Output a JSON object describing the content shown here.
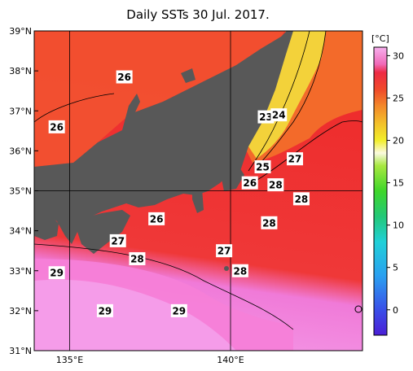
{
  "title": "Daily SSTs 30 Jul. 2017.",
  "units": "[°C]",
  "map": {
    "lon_range": [
      133.9,
      144.1
    ],
    "lat_range": [
      31,
      39
    ],
    "lat_ticks": [
      {
        "value": 39,
        "label": "39°N"
      },
      {
        "value": 38,
        "label": "38°N"
      },
      {
        "value": 37,
        "label": "37°N"
      },
      {
        "value": 36,
        "label": "36°N"
      },
      {
        "value": 35,
        "label": "35°N"
      },
      {
        "value": 34,
        "label": "34°N"
      },
      {
        "value": 33,
        "label": "33°N"
      },
      {
        "value": 32,
        "label": "32°N"
      },
      {
        "value": 31,
        "label": "31°N"
      }
    ],
    "lon_ticks": [
      {
        "value": 135,
        "label": "135°E"
      },
      {
        "value": 140,
        "label": "140°E"
      }
    ],
    "colors": {
      "land": "#585858",
      "warm_pink": "#f48ce4",
      "hot_red": "#ee2a2a",
      "orange_red": "#f25a2a",
      "yellow": "#f3d23a",
      "frame": "#000000"
    }
  },
  "isotherm_labels": [
    {
      "text": "26",
      "lon": 136.7,
      "lat": 37.85
    },
    {
      "text": "26",
      "lon": 134.6,
      "lat": 36.6
    },
    {
      "text": "23",
      "lon": 141.1,
      "lat": 36.85
    },
    {
      "text": "24",
      "lon": 141.5,
      "lat": 36.9
    },
    {
      "text": "27",
      "lon": 142.0,
      "lat": 35.8
    },
    {
      "text": "25",
      "lon": 141.0,
      "lat": 35.6
    },
    {
      "text": "26",
      "lon": 140.6,
      "lat": 35.2
    },
    {
      "text": "28",
      "lon": 141.4,
      "lat": 35.15
    },
    {
      "text": "28",
      "lon": 142.2,
      "lat": 34.8
    },
    {
      "text": "26",
      "lon": 137.7,
      "lat": 34.3
    },
    {
      "text": "28",
      "lon": 141.2,
      "lat": 34.2
    },
    {
      "text": "27",
      "lon": 136.5,
      "lat": 33.75
    },
    {
      "text": "27",
      "lon": 139.8,
      "lat": 33.5
    },
    {
      "text": "28",
      "lon": 137.1,
      "lat": 33.3
    },
    {
      "text": "28",
      "lon": 140.3,
      "lat": 33.0
    },
    {
      "text": "29",
      "lon": 134.6,
      "lat": 32.95
    },
    {
      "text": "29",
      "lon": 136.1,
      "lat": 32.0
    },
    {
      "text": "29",
      "lon": 138.4,
      "lat": 32.0
    }
  ],
  "colorbar": {
    "range": [
      -3,
      31
    ],
    "ticks": [
      {
        "value": 30,
        "label": "30"
      },
      {
        "value": 25,
        "label": "25"
      },
      {
        "value": 20,
        "label": "20"
      },
      {
        "value": 15,
        "label": "15"
      },
      {
        "value": 10,
        "label": "10"
      },
      {
        "value": 5,
        "label": "5"
      },
      {
        "value": 0,
        "label": "0"
      }
    ],
    "stops": [
      {
        "value": -3,
        "color": "#4b1fd6"
      },
      {
        "value": 0,
        "color": "#3a4fe8"
      },
      {
        "value": 4,
        "color": "#2aa0f0"
      },
      {
        "value": 8,
        "color": "#20d0d8"
      },
      {
        "value": 11,
        "color": "#23c878"
      },
      {
        "value": 14,
        "color": "#3ed62a"
      },
      {
        "value": 17,
        "color": "#a8e840"
      },
      {
        "value": 18.5,
        "color": "#fafae0"
      },
      {
        "value": 20,
        "color": "#f2ee2a"
      },
      {
        "value": 22,
        "color": "#f3c02a"
      },
      {
        "value": 24,
        "color": "#f38a2a"
      },
      {
        "value": 26,
        "color": "#f04a2a"
      },
      {
        "value": 28,
        "color": "#ee2a44"
      },
      {
        "value": 29,
        "color": "#f06ab8"
      },
      {
        "value": 31,
        "color": "#f7b0ee"
      }
    ]
  }
}
